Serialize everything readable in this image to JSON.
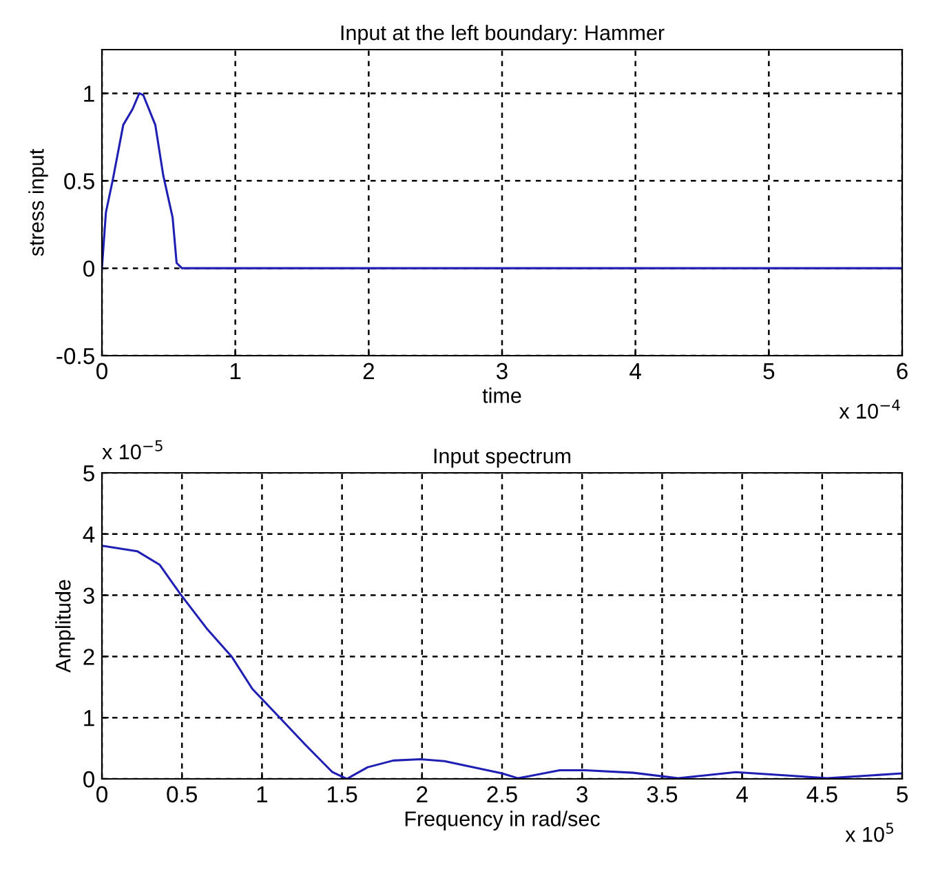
{
  "chart_data": [
    {
      "type": "line",
      "title": "Input at the left boundary: Hammer",
      "xlabel": "time",
      "ylabel": "stress input",
      "x": [
        0,
        0.03,
        0.08,
        0.16,
        0.23,
        0.28,
        0.31,
        0.4,
        0.46,
        0.53,
        0.56,
        0.6,
        6
      ],
      "series": [
        {
          "color": "#1f1fb4",
          "values": [
            0,
            0.32,
            0.5,
            0.82,
            0.91,
            1.0,
            0.99,
            0.82,
            0.53,
            0.29,
            0.03,
            0,
            0
          ]
        }
      ],
      "xlim": [
        0,
        6
      ],
      "xticks": [
        0,
        1,
        2,
        3,
        4,
        5,
        6
      ],
      "ylim": [
        -0.5,
        1.25
      ],
      "yticks": [
        -0.5,
        0,
        0.5,
        1
      ],
      "grid": true,
      "line_style": "solid",
      "marker": "none",
      "annotations": [
        "x 10$^{−4}$"
      ]
    },
    {
      "type": "line",
      "title": "Input spectrum",
      "xlabel": "Frequency in rad/sec",
      "ylabel": "Amplitude",
      "x": [
        0,
        0.22,
        0.36,
        0.49,
        0.66,
        0.81,
        0.94,
        1.1,
        1.27,
        1.44,
        1.53,
        1.66,
        1.82,
        1.99,
        2.14,
        2.5,
        2.6,
        2.86,
        3.02,
        3.32,
        3.6,
        3.96,
        4.31,
        4.53,
        5
      ],
      "series": [
        {
          "color": "#1f1fb4",
          "values": [
            3.81,
            3.72,
            3.5,
            3.02,
            2.44,
            2.0,
            1.47,
            1.03,
            0.56,
            0.11,
            0,
            0.19,
            0.3,
            0.32,
            0.29,
            0.09,
            0.01,
            0.14,
            0.14,
            0.1,
            0.01,
            0.11,
            0.05,
            0.01,
            0.09
          ]
        }
      ],
      "xlim": [
        0,
        5
      ],
      "xticks": [
        0,
        0.5,
        1,
        1.5,
        2,
        2.5,
        3,
        3.5,
        4,
        4.5,
        5
      ],
      "ylim": [
        0,
        5
      ],
      "yticks": [
        0,
        1,
        2,
        3,
        4,
        5
      ],
      "grid": true,
      "line_style": "solid",
      "marker": "none",
      "annotations": [
        "x 10$^{−5}$",
        "x 10$^{5}$"
      ]
    }
  ]
}
